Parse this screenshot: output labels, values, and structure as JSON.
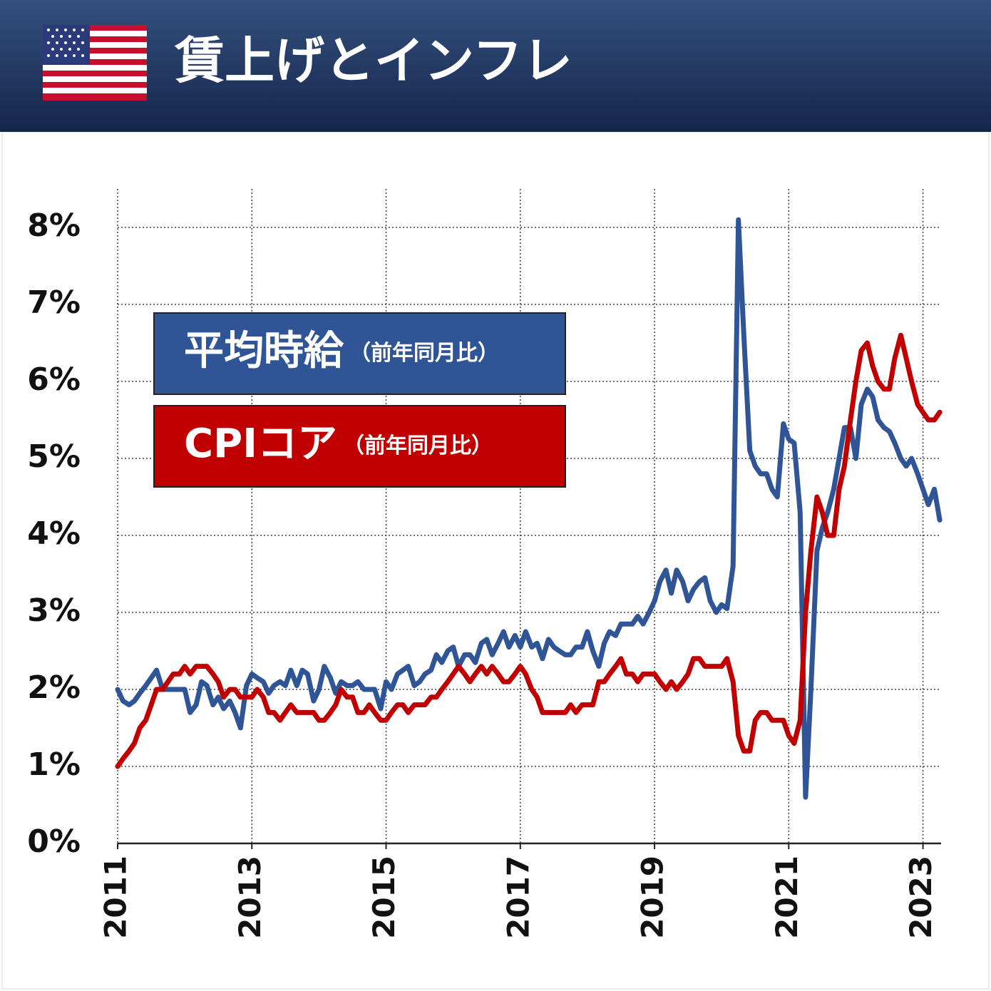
{
  "chart_data": {
    "type": "line",
    "title": "賃上げとインフレ",
    "x": [
      2011,
      2011.08,
      2011.17,
      2011.25,
      2011.33,
      2011.42,
      2011.5,
      2011.58,
      2011.67,
      2011.75,
      2011.83,
      2011.92,
      2012,
      2012.08,
      2012.17,
      2012.25,
      2012.33,
      2012.42,
      2012.5,
      2012.58,
      2012.67,
      2012.75,
      2012.83,
      2012.92,
      2013,
      2013.08,
      2013.17,
      2013.25,
      2013.33,
      2013.42,
      2013.5,
      2013.58,
      2013.67,
      2013.75,
      2013.83,
      2013.92,
      2014,
      2014.08,
      2014.17,
      2014.25,
      2014.33,
      2014.42,
      2014.5,
      2014.58,
      2014.67,
      2014.75,
      2014.83,
      2014.92,
      2015,
      2015.08,
      2015.17,
      2015.25,
      2015.33,
      2015.42,
      2015.5,
      2015.58,
      2015.67,
      2015.75,
      2015.83,
      2015.92,
      2016,
      2016.08,
      2016.17,
      2016.25,
      2016.33,
      2016.42,
      2016.5,
      2016.58,
      2016.67,
      2016.75,
      2016.83,
      2016.92,
      2017,
      2017.08,
      2017.17,
      2017.25,
      2017.33,
      2017.42,
      2017.5,
      2017.58,
      2017.67,
      2017.75,
      2017.83,
      2017.92,
      2018,
      2018.08,
      2018.17,
      2018.25,
      2018.33,
      2018.42,
      2018.5,
      2018.58,
      2018.67,
      2018.75,
      2018.83,
      2018.92,
      2019,
      2019.08,
      2019.17,
      2019.25,
      2019.33,
      2019.42,
      2019.5,
      2019.58,
      2019.67,
      2019.75,
      2019.83,
      2019.92,
      2020,
      2020.08,
      2020.17,
      2020.25,
      2020.33,
      2020.42,
      2020.5,
      2020.58,
      2020.67,
      2020.75,
      2020.83,
      2020.92,
      2021,
      2021.08,
      2021.17,
      2021.25,
      2021.33,
      2021.42,
      2021.5,
      2021.58,
      2021.67,
      2021.75,
      2021.83,
      2021.92,
      2022,
      2022.08,
      2022.17,
      2022.25,
      2022.33,
      2022.42,
      2022.5,
      2022.58,
      2022.67,
      2022.75,
      2022.83,
      2022.92,
      2023,
      2023.08,
      2023.17,
      2023.25
    ],
    "series": [
      {
        "name": "平均時給",
        "name_note": "（前年同月比）",
        "color": "#2f5597",
        "values": [
          2.0,
          1.85,
          1.8,
          1.85,
          1.95,
          2.05,
          2.15,
          2.25,
          2.0,
          2.0,
          2.0,
          2.0,
          2.0,
          1.7,
          1.8,
          2.1,
          2.05,
          1.8,
          1.9,
          1.75,
          1.85,
          1.7,
          1.5,
          2.05,
          2.2,
          2.15,
          2.1,
          1.95,
          2.05,
          2.1,
          2.05,
          2.25,
          2.05,
          2.25,
          2.2,
          1.85,
          2.0,
          2.3,
          2.15,
          1.95,
          2.1,
          2.05,
          2.05,
          2.1,
          2.0,
          2.0,
          2.0,
          1.75,
          2.1,
          2.0,
          2.2,
          2.25,
          2.3,
          2.05,
          2.1,
          2.2,
          2.25,
          2.45,
          2.35,
          2.5,
          2.55,
          2.3,
          2.45,
          2.45,
          2.35,
          2.6,
          2.65,
          2.45,
          2.6,
          2.75,
          2.55,
          2.7,
          2.55,
          2.75,
          2.55,
          2.6,
          2.4,
          2.65,
          2.55,
          2.5,
          2.45,
          2.45,
          2.55,
          2.55,
          2.75,
          2.5,
          2.3,
          2.6,
          2.75,
          2.7,
          2.85,
          2.85,
          2.85,
          2.95,
          2.85,
          3.0,
          3.15,
          3.4,
          3.55,
          3.25,
          3.55,
          3.4,
          3.15,
          3.3,
          3.4,
          3.45,
          3.15,
          3.0,
          3.1,
          3.05,
          3.6,
          8.1,
          6.6,
          5.1,
          4.9,
          4.8,
          4.8,
          4.6,
          4.5,
          5.45,
          5.25,
          5.2,
          4.3,
          0.6,
          2.0,
          3.8,
          4.1,
          4.3,
          4.6,
          5.0,
          5.4,
          5.4,
          5.0,
          5.7,
          5.9,
          5.8,
          5.5,
          5.4,
          5.35,
          5.2,
          5.0,
          4.9,
          5.0,
          4.8,
          4.6,
          4.4,
          4.6,
          4.2
        ]
      },
      {
        "name": "CPIコア",
        "name_note": "（前年同月比）",
        "color": "#c00000",
        "values": [
          1.0,
          1.1,
          1.2,
          1.3,
          1.5,
          1.6,
          1.8,
          2.0,
          2.0,
          2.1,
          2.2,
          2.2,
          2.3,
          2.2,
          2.3,
          2.3,
          2.3,
          2.2,
          2.1,
          1.9,
          2.0,
          2.0,
          1.9,
          1.9,
          1.9,
          2.0,
          1.9,
          1.7,
          1.7,
          1.6,
          1.7,
          1.8,
          1.7,
          1.7,
          1.7,
          1.7,
          1.6,
          1.6,
          1.7,
          1.8,
          2.0,
          1.9,
          1.9,
          1.7,
          1.7,
          1.8,
          1.7,
          1.6,
          1.6,
          1.7,
          1.8,
          1.8,
          1.7,
          1.8,
          1.8,
          1.8,
          1.9,
          1.9,
          2.0,
          2.1,
          2.2,
          2.3,
          2.2,
          2.1,
          2.2,
          2.3,
          2.2,
          2.3,
          2.2,
          2.1,
          2.1,
          2.2,
          2.3,
          2.2,
          2.0,
          1.9,
          1.7,
          1.7,
          1.7,
          1.7,
          1.7,
          1.8,
          1.7,
          1.8,
          1.8,
          1.8,
          2.1,
          2.1,
          2.2,
          2.3,
          2.4,
          2.2,
          2.2,
          2.1,
          2.2,
          2.2,
          2.2,
          2.1,
          2.0,
          2.1,
          2.0,
          2.1,
          2.2,
          2.4,
          2.4,
          2.3,
          2.3,
          2.3,
          2.3,
          2.4,
          2.1,
          1.4,
          1.2,
          1.2,
          1.6,
          1.7,
          1.7,
          1.6,
          1.6,
          1.6,
          1.4,
          1.3,
          1.6,
          3.0,
          3.8,
          4.5,
          4.3,
          4.0,
          4.0,
          4.6,
          4.9,
          5.5,
          6.0,
          6.4,
          6.5,
          6.2,
          6.0,
          5.9,
          5.9,
          6.3,
          6.6,
          6.3,
          6.0,
          5.7,
          5.6,
          5.5,
          5.5,
          5.6
        ]
      }
    ],
    "xlim": [
      2011,
      2023.27
    ],
    "xticks": [
      2011,
      2013,
      2015,
      2017,
      2019,
      2021,
      2023
    ],
    "ylim": [
      0,
      8.5
    ],
    "yticks": [
      {
        "value": 0,
        "label": "0%"
      },
      {
        "value": 1,
        "label": "1%"
      },
      {
        "value": 2,
        "label": "2%"
      },
      {
        "value": 3,
        "label": "3%"
      },
      {
        "value": 4,
        "label": "4%"
      },
      {
        "value": 5,
        "label": "5%"
      },
      {
        "value": 6,
        "label": "6%"
      },
      {
        "value": 7,
        "label": "7%"
      },
      {
        "value": 8,
        "label": "8%"
      }
    ],
    "grid": true
  }
}
